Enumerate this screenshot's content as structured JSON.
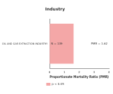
{
  "chart_data": {
    "type": "bar",
    "orientation": "horizontal",
    "ylabel": "Industry",
    "xlabel": "Proportionate Mortality Ratio (PMR)",
    "categories": [
      "OIL AND GAS EXTRACTION INDUSTRY"
    ],
    "series": [
      {
        "name": "p < 0.05",
        "color": "#f4a7a7",
        "values": [
          1.62
        ]
      }
    ],
    "value_labels": [
      "PMR = 1.62"
    ],
    "annotations": [
      "N = 139"
    ],
    "xlim": [
      0,
      4
    ],
    "xticks": [
      0,
      1,
      2,
      3,
      4
    ],
    "grid": false,
    "legend": "bottom"
  }
}
